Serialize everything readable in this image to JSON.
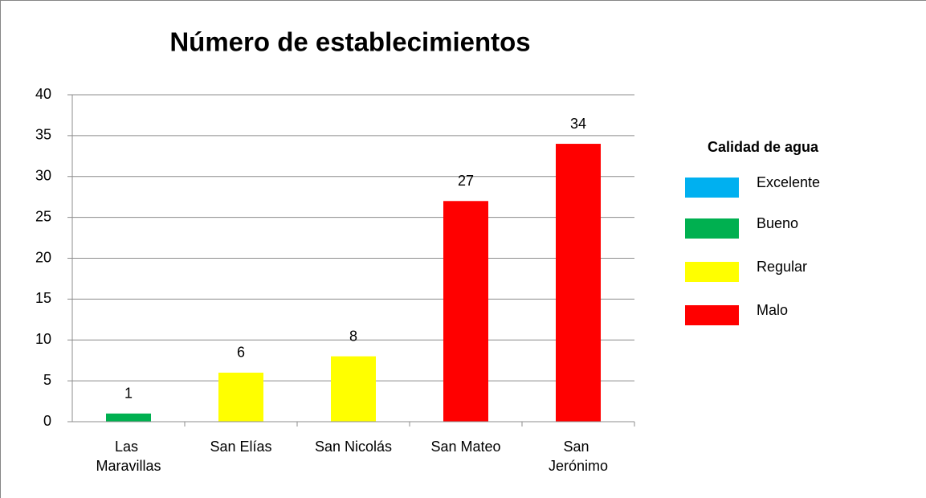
{
  "chart_data": {
    "type": "bar",
    "title": "Número de establecimientos",
    "categories": [
      "Las Maravillas",
      "San Elías",
      "San Nicolás",
      "San Mateo",
      "San Jerónimo"
    ],
    "values": [
      1,
      6,
      8,
      27,
      34
    ],
    "colors": [
      "#00b050",
      "#ffff00",
      "#ffff00",
      "#ff0000",
      "#ff0000"
    ],
    "ylim": [
      0,
      40
    ],
    "yticks": [
      0,
      5,
      10,
      15,
      20,
      25,
      30,
      35,
      40
    ],
    "grid": true,
    "legend": {
      "title": "Calidad de agua",
      "position": "right",
      "items": [
        {
          "name": "Excelente",
          "color": "#00b0f0"
        },
        {
          "name": "Bueno",
          "color": "#00b050"
        },
        {
          "name": "Regular",
          "color": "#ffff00"
        },
        {
          "name": "Malo",
          "color": "#ff0000"
        }
      ]
    }
  }
}
